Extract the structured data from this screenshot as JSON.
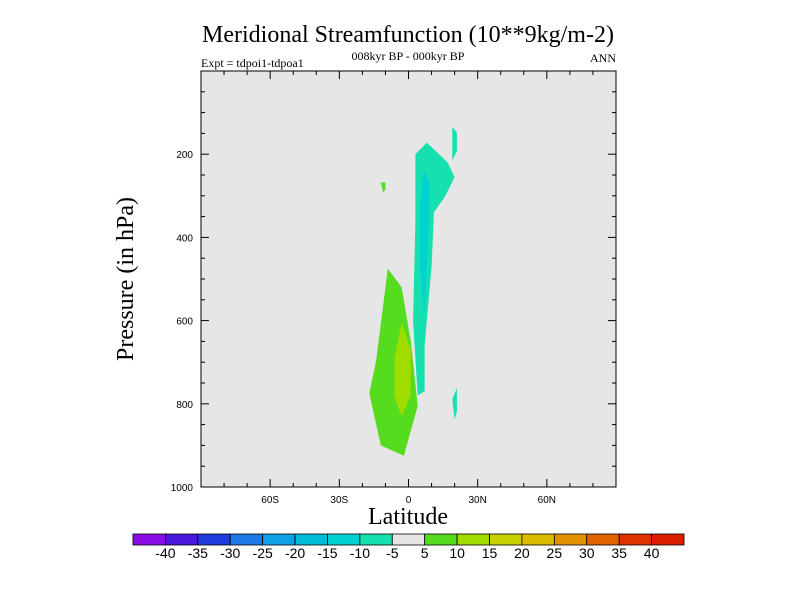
{
  "chart_data": {
    "type": "contour",
    "title": "Meridional Streamfunction (10**9kg/m-2)",
    "subtitle": "008kyr BP - 000kyr BP",
    "left_label": "Expt = tdpoi1-tdpoa1",
    "right_label": "ANN",
    "xlabel": "Latitude",
    "ylabel": "Pressure (in hPa)",
    "xlim": [
      -90,
      90
    ],
    "ylim": [
      1000,
      0
    ],
    "y_ticks": [
      {
        "value": 200,
        "label": "200"
      },
      {
        "value": 400,
        "label": "400"
      },
      {
        "value": 600,
        "label": "600"
      },
      {
        "value": 800,
        "label": "800"
      },
      {
        "value": 1000,
        "label": "1000"
      }
    ],
    "x_ticks": [
      {
        "value": -60,
        "label": "60S"
      },
      {
        "value": -30,
        "label": "30S"
      },
      {
        "value": 0,
        "label": "0"
      },
      {
        "value": 30,
        "label": "30N"
      },
      {
        "value": 60,
        "label": "60N"
      }
    ],
    "background_color": "#e6e6e6",
    "colorbar": {
      "levels": [
        "-40",
        "-35",
        "-30",
        "-25",
        "-20",
        "-15",
        "-10",
        "-5",
        "5",
        "10",
        "15",
        "20",
        "25",
        "30",
        "35",
        "40"
      ],
      "colors": [
        "#8c0ce6",
        "#4a18dc",
        "#1e3cdc",
        "#1e78e6",
        "#10a0e6",
        "#00bcd8",
        "#00d2d2",
        "#16e0b0",
        "#e6e6e6",
        "#55dc1e",
        "#a0dc00",
        "#c8d000",
        "#dcbc00",
        "#e09000",
        "#e06400",
        "#e03200",
        "#dc1e00"
      ]
    },
    "regions": [
      {
        "name": "southern-positive-cell",
        "level": "5 to 10",
        "color": "#55dc1e",
        "points": [
          [
            -9,
            475
          ],
          [
            -14,
            695
          ],
          [
            -17,
            775
          ],
          [
            -12,
            900
          ],
          [
            -2,
            925
          ],
          [
            4,
            805
          ],
          [
            1,
            650
          ],
          [
            -3,
            520
          ]
        ]
      },
      {
        "name": "southern-positive-core",
        "level": "10 to 15",
        "color": "#a0dc00",
        "points": [
          [
            -3,
            605
          ],
          [
            -6,
            690
          ],
          [
            -6,
            785
          ],
          [
            -3,
            830
          ],
          [
            1,
            780
          ],
          [
            1,
            670
          ]
        ]
      },
      {
        "name": "small-positive-patch",
        "level": "5 to 10",
        "color": "#55dc1e",
        "points": [
          [
            -12,
            268
          ],
          [
            -11,
            292
          ],
          [
            -10,
            285
          ],
          [
            -10,
            268
          ]
        ]
      },
      {
        "name": "tropical-negative-cell",
        "level": "-10 to -5",
        "color": "#16e0b0",
        "points": [
          [
            3,
            200
          ],
          [
            8,
            172
          ],
          [
            17,
            220
          ],
          [
            20,
            255
          ],
          [
            16,
            300
          ],
          [
            11,
            340
          ],
          [
            10,
            470
          ],
          [
            7,
            660
          ],
          [
            7,
            770
          ],
          [
            4,
            780
          ],
          [
            2,
            600
          ],
          [
            3,
            360
          ]
        ]
      },
      {
        "name": "tropical-negative-core",
        "level": "-15 to -10",
        "color": "#00d2d2",
        "points": [
          [
            7,
            240
          ],
          [
            9,
            268
          ],
          [
            9,
            330
          ],
          [
            8,
            470
          ],
          [
            7,
            590
          ],
          [
            5,
            470
          ],
          [
            5,
            320
          ],
          [
            6,
            262
          ]
        ]
      },
      {
        "name": "upper-negative-tongue",
        "level": "-10 to -5",
        "color": "#16e0b0",
        "points": [
          [
            19,
            193
          ],
          [
            19,
            134
          ],
          [
            21,
            148
          ],
          [
            21,
            193
          ],
          [
            19,
            215
          ]
        ]
      },
      {
        "name": "lower-negative-patch",
        "level": "-10 to -5",
        "color": "#16e0b0",
        "points": [
          [
            19,
            790
          ],
          [
            21,
            762
          ],
          [
            21,
            818
          ],
          [
            20,
            838
          ]
        ]
      }
    ]
  }
}
